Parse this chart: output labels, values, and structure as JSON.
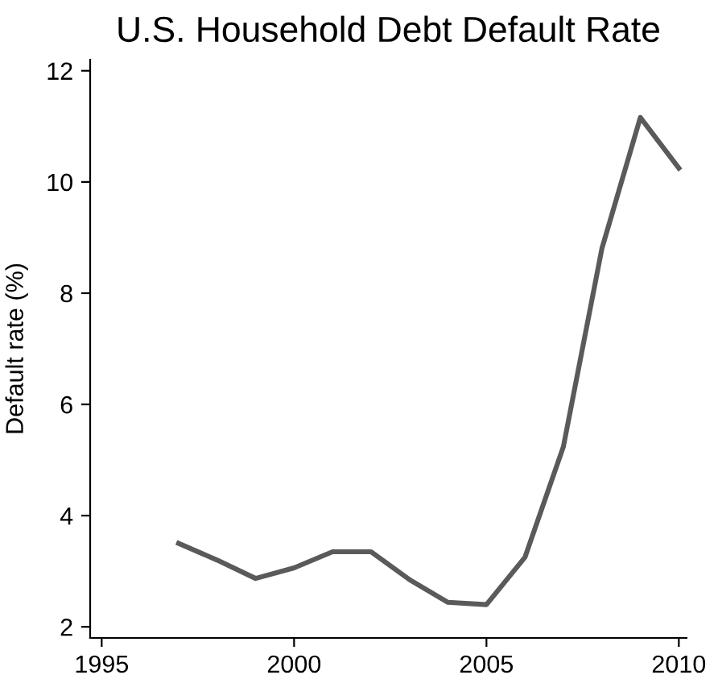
{
  "chart_data": {
    "type": "line",
    "title": "U.S. Household Debt Default Rate",
    "ylabel": "Default rate (%)",
    "x": [
      1997,
      1998,
      1999,
      2000,
      2001,
      2002,
      2003,
      2004,
      2005,
      2006,
      2007,
      2008,
      2009,
      2010
    ],
    "series": [
      {
        "color": "#5a5a5a",
        "values": [
          3.5,
          3.2,
          2.87,
          3.06,
          3.35,
          3.35,
          2.85,
          2.44,
          2.4,
          3.25,
          5.24,
          8.8,
          11.16,
          10.25
        ]
      }
    ],
    "xlim": [
      1994.7,
      2010.2
    ],
    "ylim": [
      1.8,
      12.2
    ],
    "xticks": [
      1995,
      2000,
      2005,
      2010
    ],
    "yticks": [
      2,
      4,
      6,
      8,
      10,
      12
    ],
    "grid": false,
    "legend": false,
    "marker": "none",
    "line_style": "solid"
  }
}
